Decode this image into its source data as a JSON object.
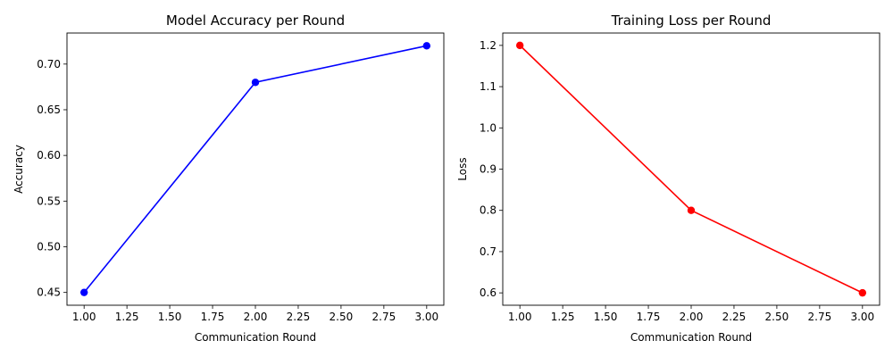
{
  "chart_data": [
    {
      "type": "line",
      "title": "Model Accuracy per Round",
      "xlabel": "Communication Round",
      "ylabel": "Accuracy",
      "xlim": [
        0.9,
        3.1
      ],
      "ylim": [
        0.436,
        0.734
      ],
      "xticks": [
        1.0,
        1.25,
        1.5,
        1.75,
        2.0,
        2.25,
        2.5,
        2.75,
        3.0
      ],
      "xtick_labels": [
        "1.00",
        "1.25",
        "1.50",
        "1.75",
        "2.00",
        "2.25",
        "2.50",
        "2.75",
        "3.00"
      ],
      "yticks": [
        0.45,
        0.5,
        0.55,
        0.6,
        0.65,
        0.7
      ],
      "ytick_labels": [
        "0.45",
        "0.50",
        "0.55",
        "0.60",
        "0.65",
        "0.70"
      ],
      "grid": false,
      "series": [
        {
          "color": "#0000ff",
          "x": [
            1,
            2,
            3
          ],
          "y": [
            0.45,
            0.68,
            0.72
          ]
        }
      ]
    },
    {
      "type": "line",
      "title": "Training Loss per Round",
      "xlabel": "Communication Round",
      "ylabel": "Loss",
      "xlim": [
        0.9,
        3.1
      ],
      "ylim": [
        0.57,
        1.23
      ],
      "xticks": [
        1.0,
        1.25,
        1.5,
        1.75,
        2.0,
        2.25,
        2.5,
        2.75,
        3.0
      ],
      "xtick_labels": [
        "1.00",
        "1.25",
        "1.50",
        "1.75",
        "2.00",
        "2.25",
        "2.50",
        "2.75",
        "3.00"
      ],
      "yticks": [
        0.6,
        0.7,
        0.8,
        0.9,
        1.0,
        1.1,
        1.2
      ],
      "ytick_labels": [
        "0.6",
        "0.7",
        "0.8",
        "0.9",
        "1.0",
        "1.1",
        "1.2"
      ],
      "grid": false,
      "series": [
        {
          "color": "#ff0000",
          "x": [
            1,
            2,
            3
          ],
          "y": [
            1.2,
            0.8,
            0.6
          ]
        }
      ]
    }
  ]
}
